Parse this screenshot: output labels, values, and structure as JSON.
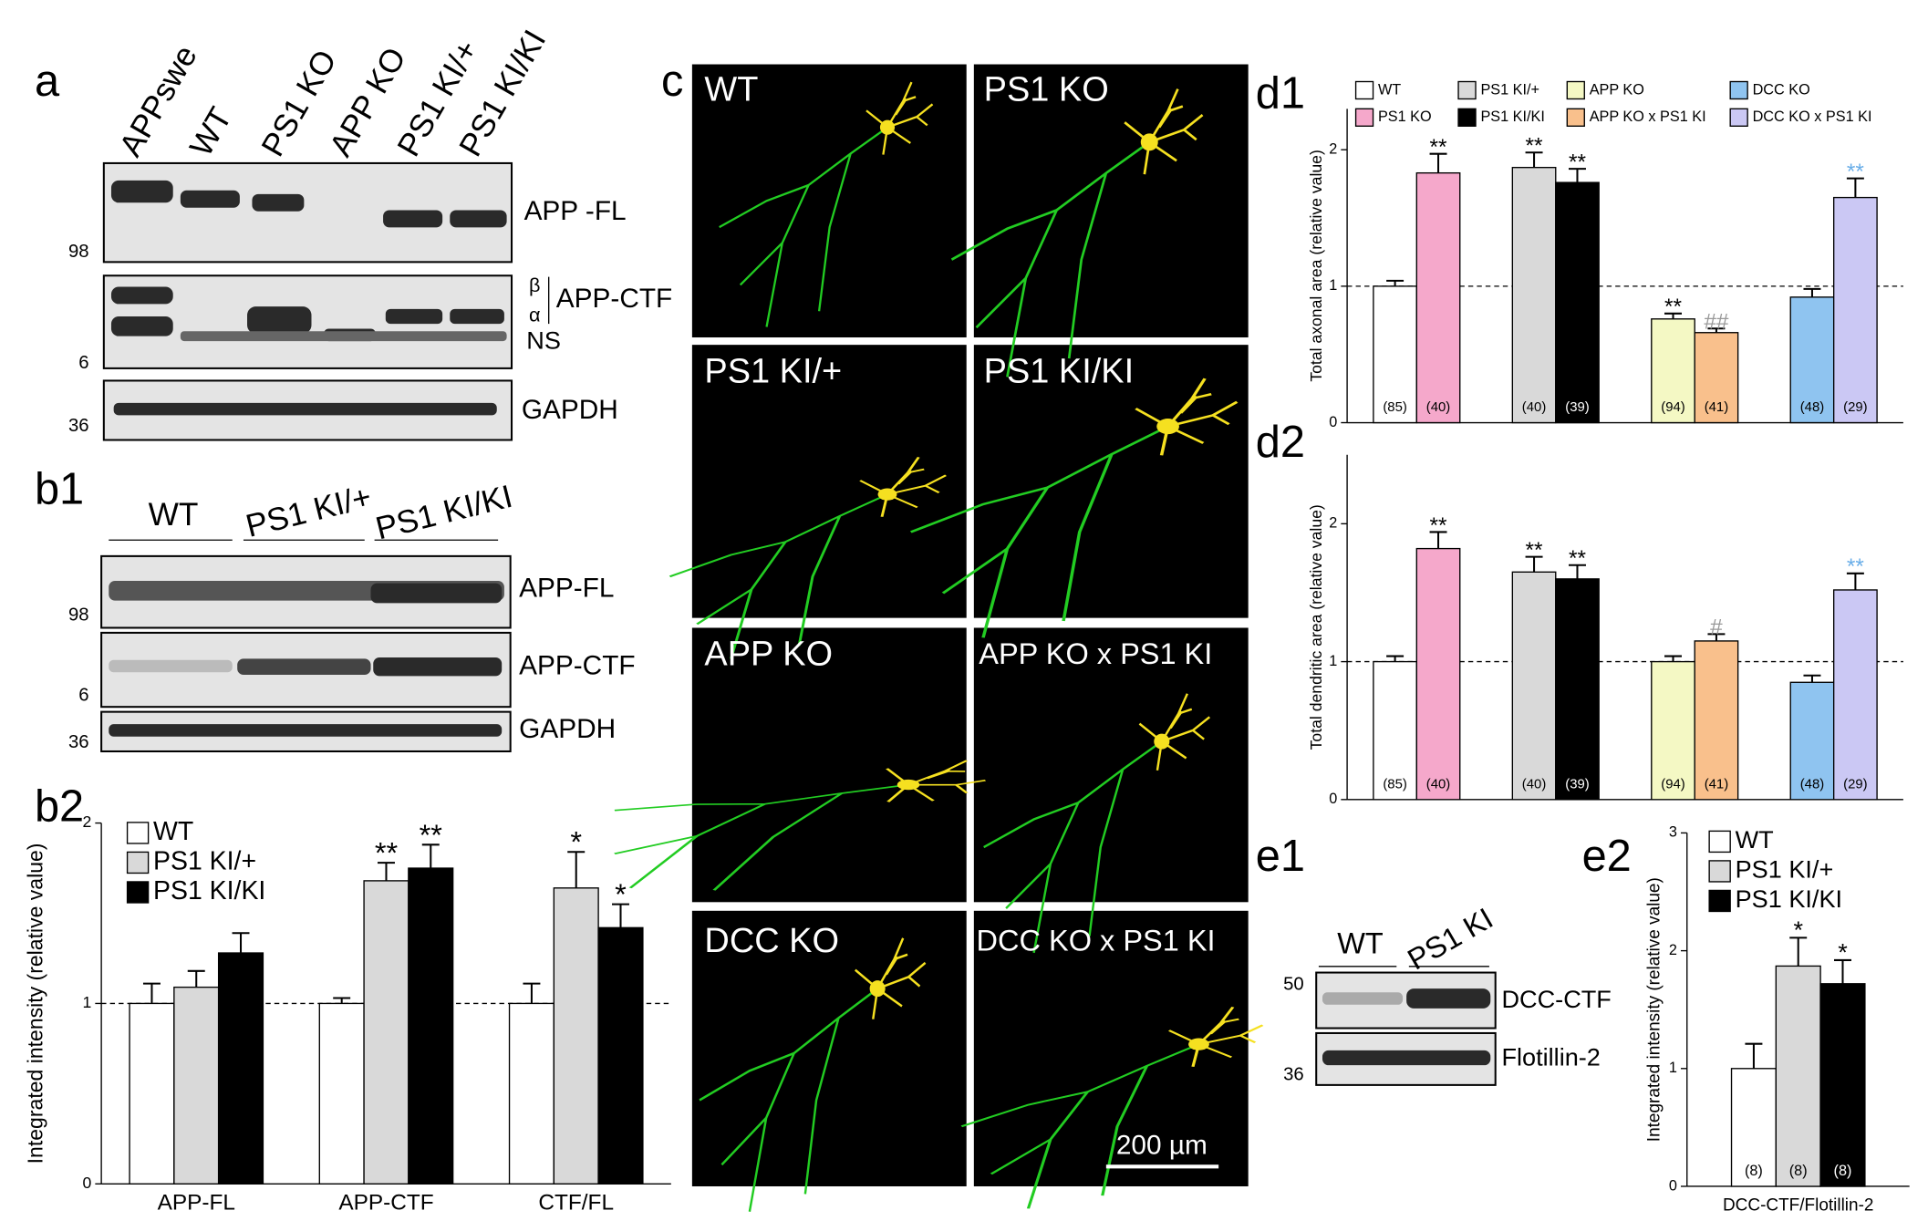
{
  "panel_labels": [
    "a",
    "b1",
    "b2",
    "c",
    "d1",
    "d2",
    "e1",
    "e2"
  ],
  "blot_a": {
    "lanes": [
      "APPswe",
      "WT",
      "PS1 KO",
      "APP KO",
      "PS1 KI/+",
      "PS1 KI/KI"
    ],
    "bands": [
      "APP -FL",
      "APP-CTF",
      "NS",
      "GAPDH"
    ],
    "ctf_marks": [
      "β",
      "α"
    ],
    "mw": [
      98,
      6,
      36
    ]
  },
  "blot_b1": {
    "groups": [
      "WT",
      "PS1 KI/+",
      "PS1 KI/KI"
    ],
    "bands": [
      "APP-FL",
      "APP-CTF",
      "GAPDH"
    ],
    "mw": [
      98,
      6,
      36
    ]
  },
  "neurons": {
    "labels": [
      "WT",
      "PS1 KO",
      "PS1 KI/+",
      "PS1 KI/KI",
      "APP KO",
      "APP KO x PS1 KI",
      "DCC KO",
      "DCC KO x PS1 KI"
    ],
    "scale_bar": "200 µm"
  },
  "blot_e1": {
    "lanes": [
      "WT",
      "PS1 KI"
    ],
    "bands": [
      "DCC-CTF",
      "Flotillin-2"
    ],
    "mw": [
      50,
      36
    ]
  },
  "chart_data": [
    {
      "type": "bar",
      "y_label": "Integrated intensity (relative value)",
      "categories": [
        "APP-FL",
        "APP-CTF",
        "CTF/FL"
      ],
      "series": [
        {
          "name": "WT",
          "color": "#ffffff",
          "values": [
            1.0,
            1.0,
            1.0
          ],
          "errors": [
            0.11,
            0.03,
            0.11
          ]
        },
        {
          "name": "PS1 KI/+",
          "color": "#d9d9d9",
          "values": [
            1.09,
            1.68,
            1.64
          ],
          "errors": [
            0.09,
            0.1,
            0.2
          ],
          "significance": [
            null,
            "**",
            "*"
          ]
        },
        {
          "name": "PS1 KI/KI",
          "color": "#000000",
          "values": [
            1.28,
            1.75,
            1.42
          ],
          "errors": [
            0.11,
            0.13,
            0.13
          ],
          "significance": [
            null,
            "**",
            "*"
          ]
        }
      ],
      "ylim": [
        0,
        2
      ],
      "yticks": [
        0,
        1,
        2
      ],
      "reference_line": 1,
      "legend": "top-left"
    },
    {
      "type": "bar",
      "y_label": "Total axonal area (relative value)",
      "categories": [
        null,
        null,
        null,
        null
      ],
      "series": [
        {
          "name": "WT",
          "color": "#ffffff",
          "values": [
            1.0,
            null,
            null,
            null
          ],
          "errors": [
            0.04,
            null,
            null,
            null
          ],
          "n_labels": [
            "(85)",
            null,
            null,
            null
          ]
        },
        {
          "name": "PS1 KO",
          "color": "#f5a8cb",
          "values": [
            1.83,
            null,
            null,
            null
          ],
          "errors": [
            0.14,
            null,
            null,
            null
          ],
          "significance": [
            "**",
            null,
            null,
            null
          ],
          "significance_color": "#000000",
          "n_labels": [
            "(40)",
            null,
            null,
            null
          ]
        },
        {
          "name": "PS1 KI/+",
          "color": "#d9d9d9",
          "values": [
            null,
            1.87,
            null,
            null
          ],
          "errors": [
            null,
            0.11,
            null,
            null
          ],
          "significance": [
            null,
            "**",
            null,
            null
          ],
          "significance_color": "#000000",
          "n_labels": [
            null,
            "(40)",
            null,
            null
          ]
        },
        {
          "name": "PS1 KI/KI",
          "color": "#000000",
          "values": [
            null,
            1.76,
            null,
            null
          ],
          "errors": [
            null,
            0.1,
            null,
            null
          ],
          "significance": [
            null,
            "**",
            null,
            null
          ],
          "significance_color": "#000000",
          "n_labels": [
            null,
            "(39)",
            null,
            null
          ]
        },
        {
          "name": "APP KO",
          "color": "#f4f8c4",
          "values": [
            null,
            null,
            0.76,
            null
          ],
          "errors": [
            null,
            null,
            0.04,
            null
          ],
          "significance": [
            null,
            null,
            "**",
            null
          ],
          "significance_color": "#000000",
          "n_labels": [
            null,
            null,
            "(94)",
            null
          ]
        },
        {
          "name": "APP KO x PS1 KI",
          "color": "#f9c08c",
          "values": [
            null,
            null,
            0.66,
            null
          ],
          "errors": [
            null,
            null,
            0.03,
            null
          ],
          "significance": [
            null,
            null,
            "##",
            null
          ],
          "significance_color": "#999999",
          "n_labels": [
            null,
            null,
            "(41)",
            null
          ]
        },
        {
          "name": "DCC KO",
          "color": "#8fc4f0",
          "values": [
            null,
            null,
            null,
            0.92
          ],
          "errors": [
            null,
            null,
            null,
            0.06
          ],
          "n_labels": [
            null,
            null,
            null,
            "(48)"
          ]
        },
        {
          "name": "DCC KO x PS1 KI",
          "color": "#cbc8f4",
          "values": [
            null,
            null,
            null,
            1.65
          ],
          "errors": [
            null,
            null,
            null,
            0.14
          ],
          "significance": [
            null,
            null,
            null,
            "**"
          ],
          "significance_color": "#6aaee8",
          "n_labels": [
            null,
            null,
            null,
            "(29)"
          ]
        }
      ],
      "ylim": [
        0,
        2.3
      ],
      "yticks": [
        0,
        1,
        2
      ],
      "reference_line": 1,
      "legend": "top"
    },
    {
      "type": "bar",
      "y_label": "Total dendritic area (relative value)",
      "categories": [
        null,
        null,
        null,
        null
      ],
      "series": [
        {
          "color": "#ffffff",
          "values": [
            1.0,
            null,
            null,
            null
          ],
          "errors": [
            0.04,
            null,
            null,
            null
          ],
          "n_labels": [
            "(85)",
            null,
            null,
            null
          ]
        },
        {
          "color": "#f5a8cb",
          "values": [
            1.82,
            null,
            null,
            null
          ],
          "errors": [
            0.12,
            null,
            null,
            null
          ],
          "significance": [
            "**",
            null,
            null,
            null
          ],
          "significance_color": "#000000",
          "n_labels": [
            "(40)",
            null,
            null,
            null
          ]
        },
        {
          "color": "#d9d9d9",
          "values": [
            null,
            1.65,
            null,
            null
          ],
          "errors": [
            null,
            0.11,
            null,
            null
          ],
          "significance": [
            null,
            "**",
            null,
            null
          ],
          "significance_color": "#000000",
          "n_labels": [
            null,
            "(40)",
            null,
            null
          ]
        },
        {
          "color": "#000000",
          "values": [
            null,
            1.6,
            null,
            null
          ],
          "errors": [
            null,
            0.1,
            null,
            null
          ],
          "significance": [
            null,
            "**",
            null,
            null
          ],
          "significance_color": "#000000",
          "n_labels": [
            null,
            "(39)",
            null,
            null
          ]
        },
        {
          "color": "#f4f8c4",
          "values": [
            null,
            null,
            1.0,
            null
          ],
          "errors": [
            null,
            null,
            0.04,
            null
          ],
          "n_labels": [
            null,
            null,
            "(94)",
            null
          ]
        },
        {
          "color": "#f9c08c",
          "values": [
            null,
            null,
            1.15,
            null
          ],
          "errors": [
            null,
            null,
            0.05,
            null
          ],
          "significance": [
            null,
            null,
            "#",
            null
          ],
          "significance_color": "#999999",
          "n_labels": [
            null,
            null,
            "(41)",
            null
          ]
        },
        {
          "color": "#8fc4f0",
          "values": [
            null,
            null,
            null,
            0.85
          ],
          "errors": [
            null,
            null,
            null,
            0.05
          ],
          "n_labels": [
            null,
            null,
            null,
            "(48)"
          ]
        },
        {
          "color": "#cbc8f4",
          "values": [
            null,
            null,
            null,
            1.52
          ],
          "errors": [
            null,
            null,
            null,
            0.12
          ],
          "significance": [
            null,
            null,
            null,
            "**"
          ],
          "significance_color": "#6aaee8",
          "n_labels": [
            null,
            null,
            null,
            "(29)"
          ]
        }
      ],
      "ylim": [
        0,
        2.5
      ],
      "yticks": [
        0,
        1,
        2
      ],
      "reference_line": 1
    },
    {
      "type": "bar",
      "y_label": "Integrated intensity (relative value)",
      "categories": [
        "DCC-CTF/Flotillin-2"
      ],
      "series": [
        {
          "name": "WT",
          "color": "#ffffff",
          "values": [
            1.0
          ],
          "errors": [
            0.21
          ],
          "n_labels": [
            "(8)"
          ]
        },
        {
          "name": "PS1 KI/+",
          "color": "#d9d9d9",
          "values": [
            1.87
          ],
          "errors": [
            0.24
          ],
          "significance": [
            "*"
          ],
          "n_labels": [
            "(8)"
          ]
        },
        {
          "name": "PS1 KI/KI",
          "color": "#000000",
          "values": [
            1.72
          ],
          "errors": [
            0.2
          ],
          "significance": [
            "*"
          ],
          "n_labels": [
            "(8)"
          ]
        }
      ],
      "ylim": [
        0,
        3
      ],
      "yticks": [
        0,
        1,
        2,
        3
      ],
      "legend": "top-left"
    }
  ]
}
